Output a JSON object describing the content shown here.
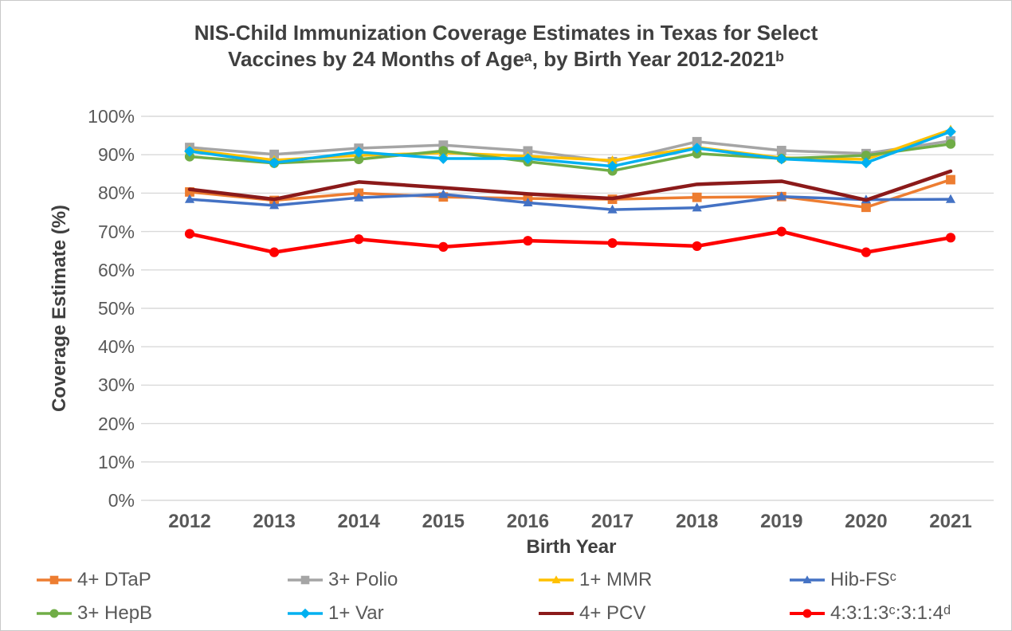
{
  "title": {
    "line1": "NIS-Child Immunization Coverage Estimates in Texas for Select",
    "line2": "Vaccines by 24 Months of Ageᵃ, by Birth Year 2012-2021ᵇ"
  },
  "colors": {
    "grid": "#d9d9d9",
    "tick_text": "#595959",
    "title_text": "#3f3f3f",
    "page_border": "#c9c9c9"
  },
  "chart_data": {
    "type": "line",
    "title": "NIS-Child Immunization Coverage Estimates in Texas for Select Vaccines by 24 Months of Ageᵃ, by Birth Year 2012-2021ᵇ",
    "xlabel": "Birth Year",
    "ylabel": "Coverage Estimate (%)",
    "ylim": [
      0,
      100
    ],
    "y_tick_step": 10,
    "y_ticks": [
      "0%",
      "10%",
      "20%",
      "30%",
      "40%",
      "50%",
      "60%",
      "70%",
      "80%",
      "90%",
      "100%"
    ],
    "grid": true,
    "legend_position": "bottom",
    "x": [
      "2012",
      "2013",
      "2014",
      "2015",
      "2016",
      "2017",
      "2018",
      "2019",
      "2020",
      "2021"
    ],
    "series": [
      {
        "id": "dtap",
        "name": "4+ DTaP",
        "color": "#ed7d31",
        "marker": "square",
        "values": [
          80.3,
          78.1,
          80.0,
          79.0,
          78.6,
          78.4,
          78.9,
          79.1,
          76.3,
          83.5
        ]
      },
      {
        "id": "polio",
        "name": "3+ Polio",
        "color": "#a5a5a5",
        "marker": "square",
        "values": [
          91.9,
          90.1,
          91.7,
          92.5,
          91.0,
          88.2,
          93.4,
          91.1,
          90.3,
          93.6
        ]
      },
      {
        "id": "mmr",
        "name": "1+ MMR",
        "color": "#ffc000",
        "marker": "triangle",
        "values": [
          91.3,
          88.6,
          89.8,
          90.5,
          89.6,
          88.5,
          91.9,
          89.2,
          88.8,
          96.5
        ]
      },
      {
        "id": "hib",
        "name": "Hib-FSᶜ",
        "color": "#4472c4",
        "marker": "triangle",
        "values": [
          78.4,
          76.8,
          78.8,
          79.7,
          77.5,
          75.7,
          76.2,
          79.1,
          78.3,
          78.4
        ]
      },
      {
        "id": "hepb",
        "name": "3+ HepB",
        "color": "#70ad47",
        "marker": "circle",
        "values": [
          89.5,
          87.8,
          88.8,
          91.0,
          88.2,
          85.8,
          90.3,
          89.0,
          89.8,
          92.8
        ]
      },
      {
        "id": "var",
        "name": "1+ Var",
        "color": "#00b0f0",
        "marker": "diamond",
        "values": [
          90.9,
          87.9,
          90.7,
          89.0,
          89.0,
          87.0,
          91.7,
          88.9,
          87.9,
          96.0
        ]
      },
      {
        "id": "pcv",
        "name": "4+ PCV",
        "color": "#8b1a1a",
        "marker": "none",
        "values": [
          81.0,
          78.4,
          82.9,
          81.4,
          79.8,
          78.6,
          82.3,
          83.1,
          78.2,
          85.7
        ]
      },
      {
        "id": "combo7",
        "name": "4:3:1:3ᶜ:3:1:4ᵈ",
        "color": "#ff0000",
        "marker": "circle",
        "values": [
          69.4,
          64.6,
          68.0,
          66.0,
          67.6,
          67.0,
          66.2,
          70.0,
          64.6,
          68.4
        ]
      }
    ]
  }
}
